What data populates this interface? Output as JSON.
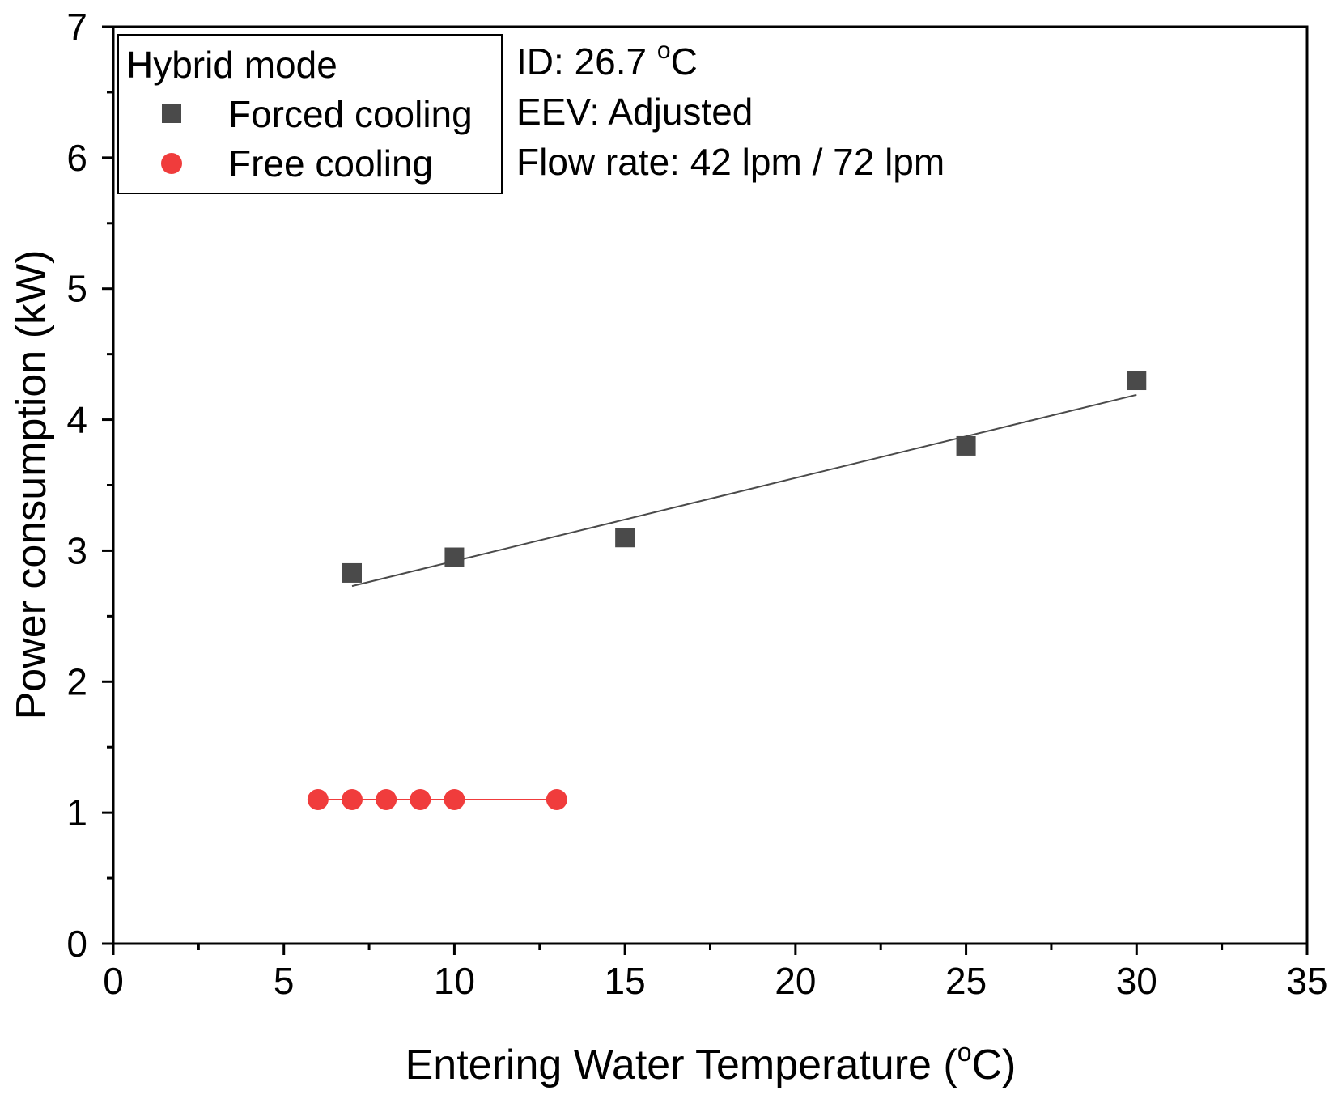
{
  "chart_data": {
    "type": "scatter",
    "xlabel": "Entering Water Temperature (",
    "xlabel_unit": "o",
    "xlabel_suffix": "C)",
    "ylabel": "Power consumption (kW)",
    "xlim": [
      0,
      35
    ],
    "ylim": [
      0,
      7
    ],
    "xticks": [
      "0",
      "5",
      "10",
      "15",
      "20",
      "25",
      "30",
      "35"
    ],
    "yticks": [
      "0",
      "1",
      "2",
      "3",
      "4",
      "5",
      "6",
      "7"
    ],
    "legend": {
      "title": "Hybrid mode",
      "position": "top-left"
    },
    "series": [
      {
        "name": "Forced cooling",
        "marker": "square",
        "color": "#4a4a4a",
        "x": [
          7,
          10,
          15,
          25,
          30
        ],
        "y": [
          2.83,
          2.95,
          3.1,
          3.8,
          4.3
        ],
        "fit_line": {
          "x": [
            7,
            30
          ],
          "y": [
            2.73,
            4.19
          ]
        }
      },
      {
        "name": "Free cooling",
        "marker": "circle",
        "color": "#f03c3c",
        "x": [
          6,
          7,
          8,
          9,
          10,
          13
        ],
        "y": [
          1.1,
          1.1,
          1.1,
          1.1,
          1.1,
          1.1
        ],
        "connect_line": true
      }
    ],
    "annotations": [
      {
        "prefix": "ID: 26.7 ",
        "sup": "o",
        "suffix": "C"
      },
      {
        "text": "EEV: Adjusted"
      },
      {
        "text": "Flow rate: 42 lpm / 72 lpm"
      }
    ]
  }
}
